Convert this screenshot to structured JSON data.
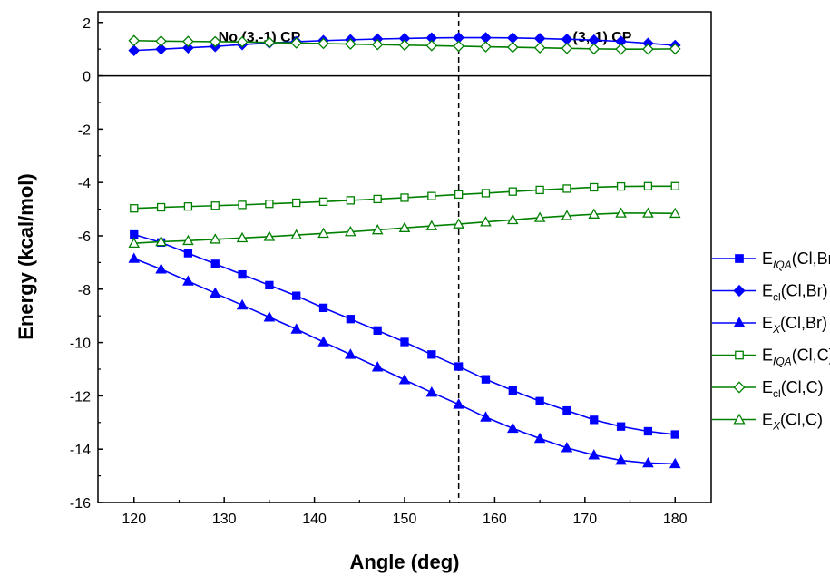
{
  "chart_data": {
    "type": "line",
    "xlabel": "Angle (deg)",
    "ylabel": "Energy (kcal/mol)",
    "xlim": [
      116,
      184
    ],
    "ylim": [
      -16,
      2.4
    ],
    "xticks": [
      120,
      130,
      140,
      150,
      160,
      170,
      180
    ],
    "xtick_labels": [
      "120",
      "130",
      "140",
      "150",
      "160",
      "170",
      "180"
    ],
    "yticks": [
      -16,
      -14,
      -12,
      -10,
      -8,
      -6,
      -4,
      -2,
      0,
      2
    ],
    "ytick_labels": [
      "-16",
      "-14",
      "-12",
      "-10",
      "-8",
      "-6",
      "-4",
      "-2",
      "0",
      "2"
    ],
    "grid": false,
    "legend_position": "right",
    "zero_line": 0,
    "divider_x": 156,
    "region_labels": [
      "No (3,-1) CP",
      "(3,-1) CP"
    ],
    "x": [
      120,
      123,
      126,
      129,
      132,
      135,
      138,
      141,
      144,
      147,
      150,
      153,
      156,
      159,
      162,
      165,
      168,
      171,
      174,
      177,
      180
    ],
    "series": [
      {
        "name": "E_IQA(Cl,Br)",
        "legend": {
          "main": "E",
          "sub": "IQA",
          "sub_italic": true,
          "suffix": "(Cl,Br)"
        },
        "color": "#0000ff",
        "marker": "square",
        "filled": true,
        "values": [
          -5.95,
          -6.25,
          -6.65,
          -7.05,
          -7.45,
          -7.85,
          -8.25,
          -8.7,
          -9.12,
          -9.55,
          -9.98,
          -10.45,
          -10.9,
          -11.38,
          -11.8,
          -12.2,
          -12.55,
          -12.9,
          -13.15,
          -13.33,
          -13.45
        ]
      },
      {
        "name": "E_cl(Cl,Br)",
        "legend": {
          "main": "E",
          "sub": "cl",
          "sub_italic": false,
          "suffix": "(Cl,Br)"
        },
        "color": "#0000ff",
        "marker": "diamond",
        "filled": true,
        "values": [
          0.95,
          1.0,
          1.05,
          1.1,
          1.17,
          1.23,
          1.28,
          1.32,
          1.35,
          1.38,
          1.4,
          1.42,
          1.43,
          1.43,
          1.42,
          1.4,
          1.37,
          1.34,
          1.29,
          1.22,
          1.14
        ]
      },
      {
        "name": "E_X(Cl,Br)",
        "legend": {
          "main": "E",
          "sub": "X",
          "sub_italic": true,
          "suffix": "(Cl,Br)"
        },
        "color": "#0000ff",
        "marker": "triangle",
        "filled": true,
        "values": [
          -6.85,
          -7.25,
          -7.7,
          -8.15,
          -8.6,
          -9.05,
          -9.5,
          -9.98,
          -10.45,
          -10.92,
          -11.4,
          -11.87,
          -12.32,
          -12.8,
          -13.22,
          -13.6,
          -13.95,
          -14.22,
          -14.42,
          -14.52,
          -14.55
        ]
      },
      {
        "name": "E_IQA(Cl,C)",
        "legend": {
          "main": "E",
          "sub": "IQA",
          "sub_italic": true,
          "suffix": "(Cl,C)"
        },
        "color": "#008000",
        "marker": "square",
        "filled": false,
        "values": [
          -4.97,
          -4.93,
          -4.9,
          -4.87,
          -4.84,
          -4.8,
          -4.76,
          -4.72,
          -4.67,
          -4.62,
          -4.57,
          -4.51,
          -4.45,
          -4.4,
          -4.34,
          -4.28,
          -4.23,
          -4.18,
          -4.15,
          -4.14,
          -4.14
        ]
      },
      {
        "name": "E_cl(Cl,C)",
        "legend": {
          "main": "E",
          "sub": "cl",
          "sub_italic": false,
          "suffix": "(Cl,C)"
        },
        "color": "#008000",
        "marker": "diamond",
        "filled": false,
        "values": [
          1.32,
          1.3,
          1.29,
          1.28,
          1.27,
          1.25,
          1.23,
          1.21,
          1.19,
          1.17,
          1.15,
          1.13,
          1.11,
          1.09,
          1.07,
          1.05,
          1.03,
          1.01,
          1.0,
          1.0,
          1.01
        ]
      },
      {
        "name": "E_X(Cl,C)",
        "legend": {
          "main": "E",
          "sub": "X",
          "sub_italic": true,
          "suffix": "(Cl,C)"
        },
        "color": "#008000",
        "marker": "triangle",
        "filled": false,
        "values": [
          -6.28,
          -6.22,
          -6.18,
          -6.13,
          -6.08,
          -6.03,
          -5.97,
          -5.91,
          -5.85,
          -5.78,
          -5.7,
          -5.63,
          -5.56,
          -5.48,
          -5.4,
          -5.32,
          -5.25,
          -5.19,
          -5.15,
          -5.15,
          -5.16
        ]
      }
    ]
  }
}
